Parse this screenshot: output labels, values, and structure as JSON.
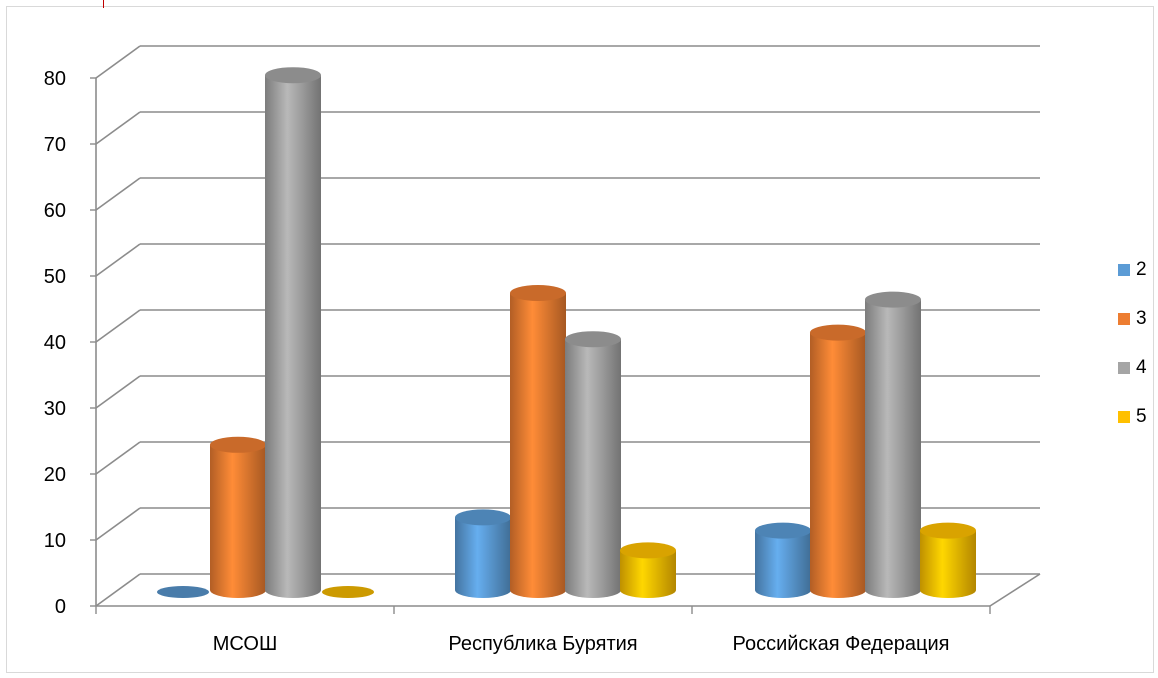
{
  "chart_data": {
    "type": "bar",
    "categories": [
      "МСОШ",
      "Республика Бурятия",
      "Российская Федерация"
    ],
    "series": [
      {
        "name": "2",
        "color": "#5B9BD5",
        "values": [
          0,
          11,
          9
        ]
      },
      {
        "name": "3",
        "color": "#ED7D31",
        "values": [
          22,
          45,
          39
        ]
      },
      {
        "name": "4",
        "color": "#A5A5A5",
        "values": [
          78,
          38,
          44
        ]
      },
      {
        "name": "5",
        "color": "#FFC000",
        "values": [
          0,
          6,
          9
        ]
      }
    ],
    "ylim": [
      0,
      80
    ],
    "yticks": [
      "0",
      "10",
      "20",
      "30",
      "40",
      "50",
      "60",
      "70",
      "80"
    ],
    "grid": true,
    "legend_position": "right"
  },
  "legend": {
    "items": [
      "2",
      "3",
      "4",
      "5"
    ]
  }
}
